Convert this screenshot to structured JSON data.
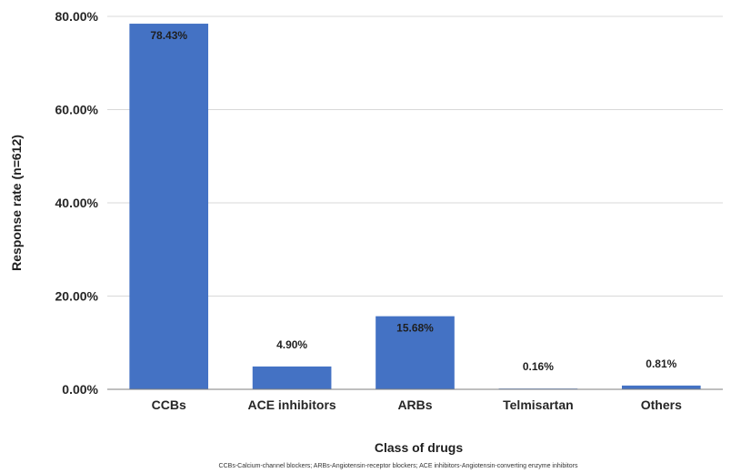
{
  "chart_data": {
    "type": "bar",
    "categories": [
      "CCBs",
      "ACE inhibitors",
      "ARBs",
      "Telmisartan",
      "Others"
    ],
    "values": [
      78.43,
      4.9,
      15.68,
      0.16,
      0.81
    ],
    "value_labels": [
      "78.43%",
      "4.90%",
      "15.68%",
      "0.16%",
      "0.81%"
    ],
    "xlabel": "Class of drugs",
    "ylabel": "Response rate (n=612)",
    "ylim": [
      0,
      80
    ],
    "yticks": [
      0,
      20,
      40,
      60,
      80
    ],
    "ytick_labels": [
      "0.00%",
      "20.00%",
      "40.00%",
      "60.00%",
      "80.00%"
    ],
    "grid": true,
    "bar_color": "#4472C4",
    "footnote": "CCBs-Calcium-channel blockers; ARBs-Angiotensin-receptor blockers; ACE inhibitors-Angiotensin-converting enzyme inhibitors"
  }
}
